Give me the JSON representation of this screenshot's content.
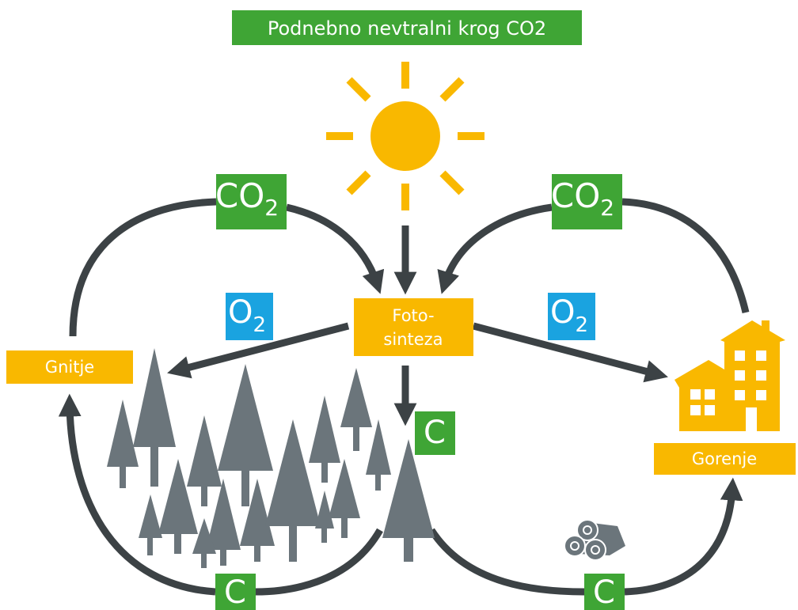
{
  "title": "Podnebno nevtralni krog CO2",
  "co2_left": {
    "main": "CO",
    "sub": "2"
  },
  "co2_right": {
    "main": "CO",
    "sub": "2"
  },
  "o2_left": {
    "main": "O",
    "sub": "2"
  },
  "o2_right": {
    "main": "O",
    "sub": "2"
  },
  "photosynthesis": {
    "line1": "Foto-",
    "line2": "sinteza"
  },
  "decay": "Gnitje",
  "burning": "Gorenje",
  "carbon_tree": "C",
  "carbon_bottom_left": "C",
  "carbon_bottom_right": "C"
}
